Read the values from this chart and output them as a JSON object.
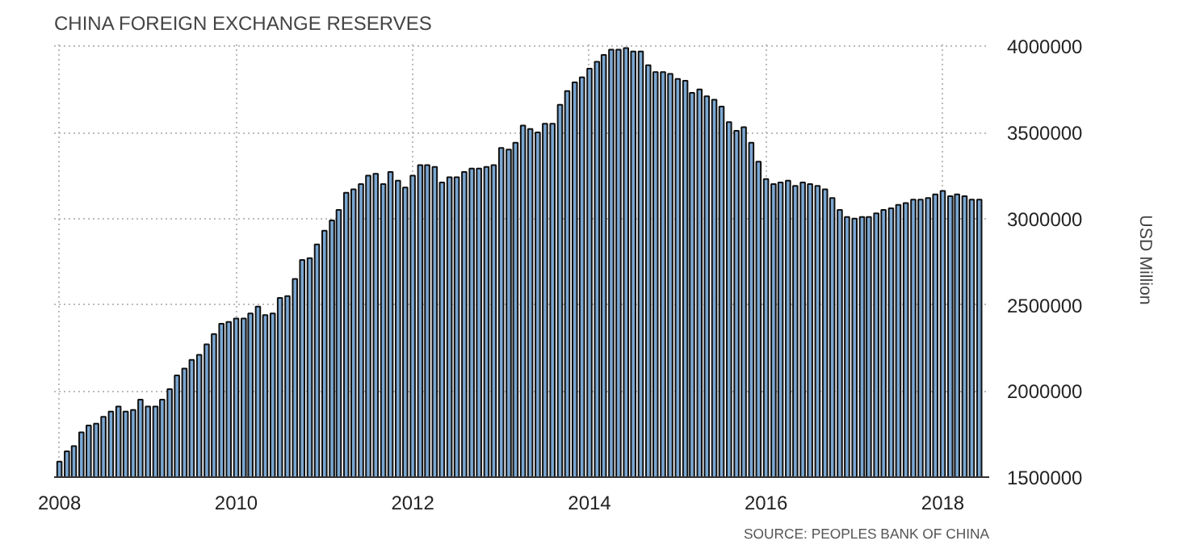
{
  "chart_data": {
    "type": "bar",
    "title": "CHINA FOREIGN EXCHANGE RESERVES",
    "ylabel": "USD Million",
    "annotations": [
      "SOURCE: PEOPLES BANK OF CHINA"
    ],
    "x": [
      "2008-01",
      "2008-02",
      "2008-03",
      "2008-04",
      "2008-05",
      "2008-06",
      "2008-07",
      "2008-08",
      "2008-09",
      "2008-10",
      "2008-11",
      "2008-12",
      "2009-01",
      "2009-02",
      "2009-03",
      "2009-04",
      "2009-05",
      "2009-06",
      "2009-07",
      "2009-08",
      "2009-09",
      "2009-10",
      "2009-11",
      "2009-12",
      "2010-01",
      "2010-02",
      "2010-03",
      "2010-04",
      "2010-05",
      "2010-06",
      "2010-07",
      "2010-08",
      "2010-09",
      "2010-10",
      "2010-11",
      "2010-12",
      "2011-01",
      "2011-02",
      "2011-03",
      "2011-04",
      "2011-05",
      "2011-06",
      "2011-07",
      "2011-08",
      "2011-09",
      "2011-10",
      "2011-11",
      "2011-12",
      "2012-01",
      "2012-02",
      "2012-03",
      "2012-04",
      "2012-05",
      "2012-06",
      "2012-07",
      "2012-08",
      "2012-09",
      "2012-10",
      "2012-11",
      "2012-12",
      "2013-01",
      "2013-02",
      "2013-03",
      "2013-04",
      "2013-05",
      "2013-06",
      "2013-07",
      "2013-08",
      "2013-09",
      "2013-10",
      "2013-11",
      "2013-12",
      "2014-01",
      "2014-02",
      "2014-03",
      "2014-04",
      "2014-05",
      "2014-06",
      "2014-07",
      "2014-08",
      "2014-09",
      "2014-10",
      "2014-11",
      "2014-12",
      "2015-01",
      "2015-02",
      "2015-03",
      "2015-04",
      "2015-05",
      "2015-06",
      "2015-07",
      "2015-08",
      "2015-09",
      "2015-10",
      "2015-11",
      "2015-12",
      "2016-01",
      "2016-02",
      "2016-03",
      "2016-04",
      "2016-05",
      "2016-06",
      "2016-07",
      "2016-08",
      "2016-09",
      "2016-10",
      "2016-11",
      "2016-12",
      "2017-01",
      "2017-02",
      "2017-03",
      "2017-04",
      "2017-05",
      "2017-06",
      "2017-07",
      "2017-08",
      "2017-09",
      "2017-10",
      "2017-11",
      "2017-12",
      "2018-01",
      "2018-02",
      "2018-03",
      "2018-04",
      "2018-05",
      "2018-06"
    ],
    "values": [
      1590000,
      1650000,
      1680000,
      1760000,
      1800000,
      1810000,
      1850000,
      1880000,
      1910000,
      1880000,
      1890000,
      1950000,
      1910000,
      1910000,
      1950000,
      2010000,
      2090000,
      2130000,
      2180000,
      2210000,
      2270000,
      2330000,
      2390000,
      2400000,
      2420000,
      2420000,
      2450000,
      2490000,
      2440000,
      2450000,
      2540000,
      2550000,
      2650000,
      2760000,
      2770000,
      2850000,
      2930000,
      2990000,
      3050000,
      3150000,
      3170000,
      3200000,
      3250000,
      3260000,
      3200000,
      3270000,
      3220000,
      3180000,
      3250000,
      3310000,
      3310000,
      3300000,
      3210000,
      3240000,
      3240000,
      3270000,
      3290000,
      3290000,
      3300000,
      3310000,
      3410000,
      3400000,
      3440000,
      3540000,
      3520000,
      3500000,
      3550000,
      3550000,
      3660000,
      3740000,
      3790000,
      3820000,
      3870000,
      3910000,
      3950000,
      3980000,
      3980000,
      3990000,
      3970000,
      3970000,
      3890000,
      3850000,
      3850000,
      3840000,
      3810000,
      3800000,
      3730000,
      3750000,
      3710000,
      3690000,
      3650000,
      3560000,
      3510000,
      3530000,
      3440000,
      3330000,
      3230000,
      3200000,
      3210000,
      3220000,
      3190000,
      3210000,
      3200000,
      3190000,
      3170000,
      3120000,
      3050000,
      3010000,
      3000000,
      3010000,
      3010000,
      3030000,
      3050000,
      3060000,
      3080000,
      3090000,
      3110000,
      3110000,
      3120000,
      3140000,
      3160000,
      3130000,
      3140000,
      3130000,
      3110000,
      3110000
    ],
    "color": "#7ba7d2",
    "xlim": [
      "2007-12-10",
      "2018-07-12"
    ],
    "xticks": [
      "2008",
      "2010",
      "2012",
      "2014",
      "2016",
      "2018"
    ],
    "ylim": [
      1500000,
      4020000
    ],
    "yticks": [
      1500000,
      2000000,
      2500000,
      3000000,
      3500000,
      4000000
    ],
    "grid": true
  }
}
